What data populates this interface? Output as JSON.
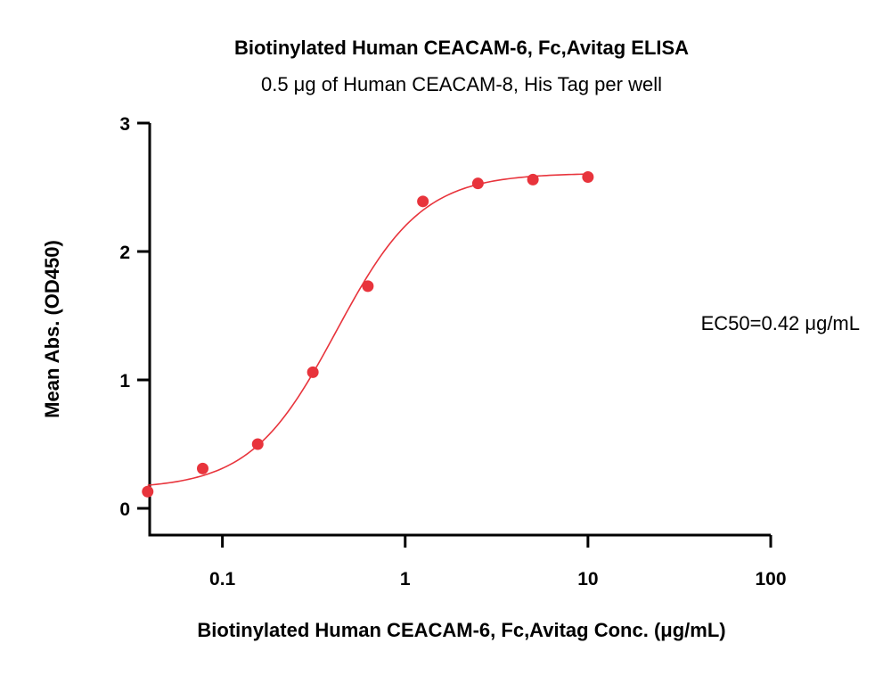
{
  "chart_data": {
    "type": "scatter",
    "title": "Biotinylated Human CEACAM-6, Fc,Avitag ELISA",
    "subtitle": "0.5 μg of Human CEACAM-8, His Tag per well",
    "xlabel": "Biotinylated Human CEACAM-6, Fc,Avitag Conc. (μg/mL)",
    "ylabel": "Mean Abs. (OD450)",
    "x_scale": "log",
    "xlim": [
      0.04,
      100
    ],
    "ylim": [
      0,
      3
    ],
    "x_ticks": [
      {
        "value": 0.1,
        "label": "0.1"
      },
      {
        "value": 1,
        "label": "1"
      },
      {
        "value": 10,
        "label": "10"
      },
      {
        "value": 100,
        "label": "100"
      }
    ],
    "y_ticks": [
      {
        "value": 0,
        "label": "0"
      },
      {
        "value": 1,
        "label": "1"
      },
      {
        "value": 2,
        "label": "2"
      },
      {
        "value": 3,
        "label": "3"
      }
    ],
    "grid": false,
    "series": [
      {
        "color": "#e8343c",
        "x": [
          0.039,
          0.078,
          0.156,
          0.3125,
          0.625,
          1.25,
          2.5,
          5,
          10
        ],
        "y": [
          0.13,
          0.31,
          0.5,
          1.06,
          1.73,
          2.39,
          2.53,
          2.56,
          2.58
        ],
        "fit": {
          "model": "4PL",
          "bottom": 0.15,
          "top": 2.61,
          "ec50": 0.42,
          "hill": 1.85
        }
      }
    ],
    "annotation": "EC50=0.42 μg/mL"
  }
}
